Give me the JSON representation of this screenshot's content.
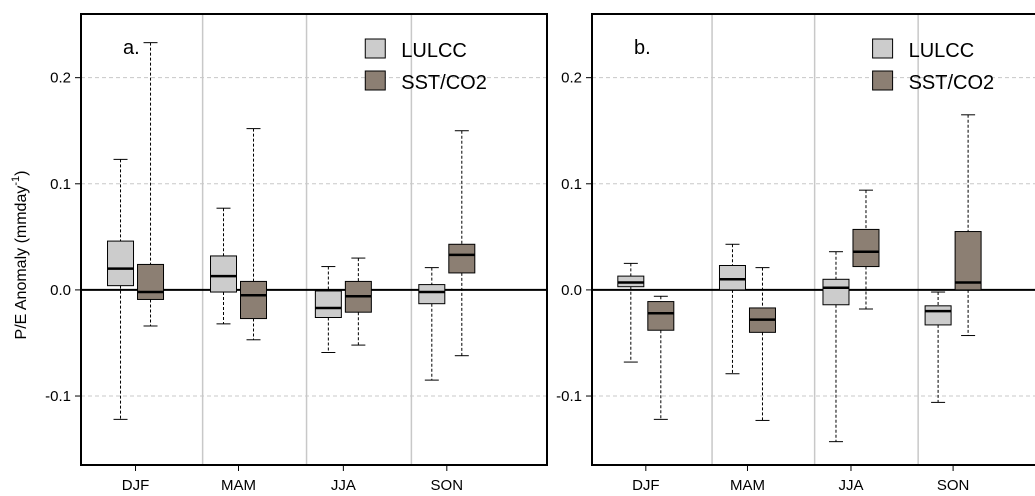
{
  "figure": {
    "ylabel_main": "P/E Anomaly  (mmday",
    "ylabel_sup": "-1",
    "ylabel_close": ")"
  },
  "chart_data": [
    {
      "type": "boxplot",
      "panel_label": "a.",
      "categories": [
        "DJF",
        "MAM",
        "JJA",
        "SON"
      ],
      "ylim": [
        -0.165,
        0.26
      ],
      "yticks": [
        -0.1,
        0.0,
        0.1,
        0.2
      ],
      "ytick_labels": [
        "-0.1",
        "0.0",
        "0.1",
        "0.2"
      ],
      "grid": "horizontal dashed",
      "legend_position": "top-right",
      "legend_entries": [
        "LULCC",
        "SST/CO2"
      ],
      "series": [
        {
          "name": "LULCC",
          "color": "#cccccc",
          "boxes": [
            {
              "category": "DJF",
              "min": -0.122,
              "q1": 0.004,
              "median": 0.02,
              "q3": 0.046,
              "max": 0.123
            },
            {
              "category": "MAM",
              "min": -0.032,
              "q1": -0.002,
              "median": 0.013,
              "q3": 0.032,
              "max": 0.077
            },
            {
              "category": "JJA",
              "min": -0.059,
              "q1": -0.026,
              "median": -0.017,
              "q3": -0.001,
              "max": 0.022
            },
            {
              "category": "SON",
              "min": -0.085,
              "q1": -0.013,
              "median": -0.002,
              "q3": 0.005,
              "max": 0.021
            }
          ]
        },
        {
          "name": "SST/CO2",
          "color": "#8c7f73",
          "boxes": [
            {
              "category": "DJF",
              "min": -0.034,
              "q1": -0.009,
              "median": -0.002,
              "q3": 0.024,
              "max": 0.233
            },
            {
              "category": "MAM",
              "min": -0.047,
              "q1": -0.027,
              "median": -0.005,
              "q3": 0.008,
              "max": 0.152
            },
            {
              "category": "JJA",
              "min": -0.052,
              "q1": -0.021,
              "median": -0.006,
              "q3": 0.008,
              "max": 0.03
            },
            {
              "category": "SON",
              "min": -0.062,
              "q1": 0.016,
              "median": 0.033,
              "q3": 0.043,
              "max": 0.15
            }
          ]
        }
      ]
    },
    {
      "type": "boxplot",
      "panel_label": "b.",
      "categories": [
        "DJF",
        "MAM",
        "JJA",
        "SON"
      ],
      "ylim": [
        -0.165,
        0.26
      ],
      "yticks": [
        -0.1,
        0.0,
        0.1,
        0.2
      ],
      "ytick_labels": [
        "-0.1",
        "0.0",
        "0.1",
        "0.2"
      ],
      "grid": "horizontal dashed",
      "legend_position": "top-right",
      "legend_entries": [
        "LULCC",
        "SST/CO2"
      ],
      "series": [
        {
          "name": "LULCC",
          "color": "#cccccc",
          "boxes": [
            {
              "category": "DJF",
              "min": -0.068,
              "q1": 0.003,
              "median": 0.007,
              "q3": 0.013,
              "max": 0.025
            },
            {
              "category": "MAM",
              "min": -0.079,
              "q1": 0.0,
              "median": 0.01,
              "q3": 0.023,
              "max": 0.043
            },
            {
              "category": "JJA",
              "min": -0.143,
              "q1": -0.014,
              "median": 0.002,
              "q3": 0.01,
              "max": 0.036
            },
            {
              "category": "SON",
              "min": -0.106,
              "q1": -0.033,
              "median": -0.02,
              "q3": -0.015,
              "max": -0.002
            }
          ]
        },
        {
          "name": "SST/CO2",
          "color": "#8c7f73",
          "boxes": [
            {
              "category": "DJF",
              "min": -0.122,
              "q1": -0.038,
              "median": -0.022,
              "q3": -0.011,
              "max": -0.006
            },
            {
              "category": "MAM",
              "min": -0.123,
              "q1": -0.04,
              "median": -0.028,
              "q3": -0.017,
              "max": 0.021
            },
            {
              "category": "JJA",
              "min": -0.018,
              "q1": 0.022,
              "median": 0.036,
              "q3": 0.057,
              "max": 0.094
            },
            {
              "category": "SON",
              "min": -0.043,
              "q1": 0.0,
              "median": 0.007,
              "q3": 0.055,
              "max": 0.165
            }
          ]
        }
      ]
    }
  ]
}
